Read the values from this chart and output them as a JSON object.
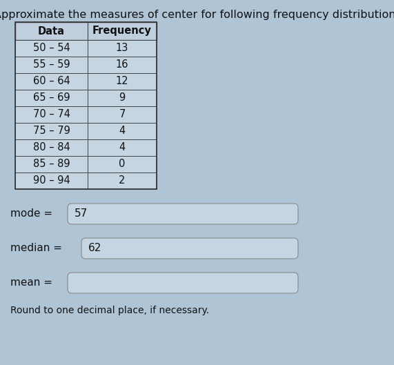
{
  "title": "Approximate the measures of center for following frequency distribution.",
  "title_fontsize": 11.5,
  "table_header": [
    "Data",
    "Frequency"
  ],
  "table_rows": [
    [
      "50 – 54",
      "13"
    ],
    [
      "55 – 59",
      "16"
    ],
    [
      "60 – 64",
      "12"
    ],
    [
      "65 – 69",
      "9"
    ],
    [
      "70 – 74",
      "7"
    ],
    [
      "75 – 79",
      "4"
    ],
    [
      "80 – 84",
      "4"
    ],
    [
      "85 – 89",
      "0"
    ],
    [
      "90 – 94",
      "2"
    ]
  ],
  "mode_label": "mode = ",
  "mode_value": "57",
  "median_label": "median = ",
  "median_value": "62",
  "mean_label": "mean = ",
  "mean_value": "",
  "footnote": "Round to one decimal place, if necessary.",
  "bg_color": "#afc5d5",
  "table_cell_bg": "#c5d5e2",
  "table_header_bg": "#bfcfde",
  "box_filled_bg": "#c5d5e2",
  "box_empty_bg": "#c5d5e2",
  "text_color": "#111111",
  "font_family": "DejaVu Sans",
  "label_fontsize": 11,
  "data_fontsize": 10.5
}
